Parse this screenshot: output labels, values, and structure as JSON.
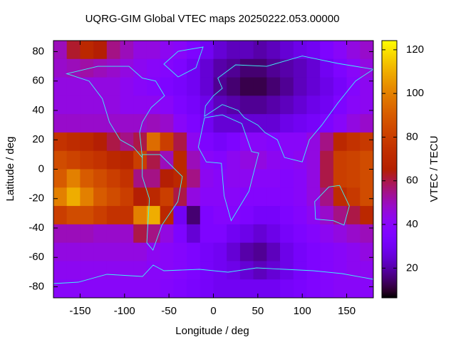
{
  "chart_data": {
    "type": "heatmap",
    "title": "UQRG-GIM Global VTEC maps 20250222.053.00000",
    "x_label": "Longitude / deg",
    "y_label": "Latitude / deg",
    "colorbar_label": "VTEC / TECU",
    "x": [
      -172.5,
      -157.5,
      -142.5,
      -127.5,
      -112.5,
      -97.5,
      -82.5,
      -67.5,
      -52.5,
      -37.5,
      -22.5,
      -7.5,
      7.5,
      22.5,
      37.5,
      52.5,
      67.5,
      82.5,
      97.5,
      112.5,
      127.5,
      142.5,
      157.5,
      172.5
    ],
    "y": [
      81.25,
      68.75,
      56.25,
      43.75,
      31.25,
      18.75,
      6.25,
      -6.25,
      -18.75,
      -31.25,
      -43.75,
      -56.25,
      -68.75,
      -81.25
    ],
    "z": [
      [
        50,
        62,
        70,
        65,
        55,
        50,
        45,
        45,
        42,
        40,
        35,
        30,
        25,
        22,
        22,
        20,
        22,
        25,
        28,
        30,
        35,
        40,
        45,
        48
      ],
      [
        48,
        50,
        52,
        50,
        48,
        45,
        42,
        40,
        38,
        35,
        30,
        25,
        20,
        18,
        15,
        15,
        18,
        20,
        22,
        25,
        30,
        35,
        40,
        45
      ],
      [
        45,
        45,
        45,
        45,
        45,
        42,
        40,
        38,
        35,
        33,
        30,
        25,
        18,
        15,
        12,
        12,
        15,
        18,
        22,
        25,
        28,
        32,
        38,
        42
      ],
      [
        45,
        45,
        45,
        45,
        45,
        42,
        42,
        42,
        40,
        35,
        32,
        28,
        22,
        20,
        18,
        18,
        20,
        22,
        25,
        28,
        30,
        35,
        40,
        42
      ],
      [
        48,
        48,
        48,
        48,
        48,
        48,
        48,
        50,
        48,
        40,
        35,
        30,
        25,
        25,
        25,
        25,
        25,
        28,
        30,
        32,
        35,
        40,
        45,
        48
      ],
      [
        75,
        72,
        70,
        65,
        60,
        55,
        60,
        95,
        80,
        60,
        42,
        35,
        32,
        35,
        40,
        40,
        38,
        40,
        40,
        45,
        55,
        70,
        75,
        78
      ],
      [
        85,
        82,
        78,
        75,
        70,
        68,
        80,
        60,
        50,
        70,
        50,
        40,
        38,
        42,
        45,
        45,
        42,
        40,
        42,
        45,
        60,
        80,
        82,
        85
      ],
      [
        90,
        100,
        90,
        85,
        80,
        75,
        55,
        55,
        65,
        70,
        55,
        42,
        40,
        42,
        42,
        40,
        40,
        38,
        40,
        45,
        60,
        80,
        82,
        85
      ],
      [
        100,
        110,
        100,
        90,
        85,
        80,
        65,
        70,
        80,
        60,
        45,
        40,
        40,
        40,
        38,
        38,
        38,
        38,
        40,
        45,
        55,
        72,
        78,
        85
      ],
      [
        80,
        85,
        85,
        80,
        75,
        75,
        100,
        110,
        70,
        30,
        15,
        35,
        38,
        38,
        35,
        32,
        32,
        35,
        38,
        42,
        48,
        55,
        60,
        70
      ],
      [
        50,
        50,
        50,
        48,
        48,
        48,
        60,
        55,
        45,
        35,
        25,
        35,
        35,
        30,
        28,
        25,
        28,
        32,
        35,
        38,
        42,
        45,
        48,
        50
      ],
      [
        45,
        45,
        45,
        45,
        45,
        45,
        45,
        42,
        40,
        38,
        35,
        32,
        30,
        25,
        20,
        18,
        22,
        28,
        32,
        35,
        38,
        40,
        42,
        45
      ],
      [
        42,
        42,
        42,
        42,
        42,
        42,
        42,
        40,
        40,
        38,
        35,
        32,
        30,
        28,
        25,
        22,
        25,
        28,
        32,
        35,
        38,
        40,
        42,
        42
      ],
      [
        40,
        40,
        40,
        40,
        40,
        40,
        40,
        40,
        38,
        36,
        34,
        32,
        30,
        30,
        30,
        30,
        30,
        32,
        34,
        36,
        38,
        40,
        40,
        40
      ]
    ],
    "xlim": [
      -180,
      180
    ],
    "ylim": [
      -87.5,
      87.5
    ],
    "xticks": [
      -150,
      -100,
      -50,
      0,
      50,
      100,
      150
    ],
    "yticks": [
      -80,
      -60,
      -40,
      -20,
      0,
      20,
      40,
      60,
      80
    ],
    "zlim": [
      6.4,
      124.2
    ],
    "zticks": [
      20,
      40,
      60,
      80,
      100,
      120
    ]
  }
}
